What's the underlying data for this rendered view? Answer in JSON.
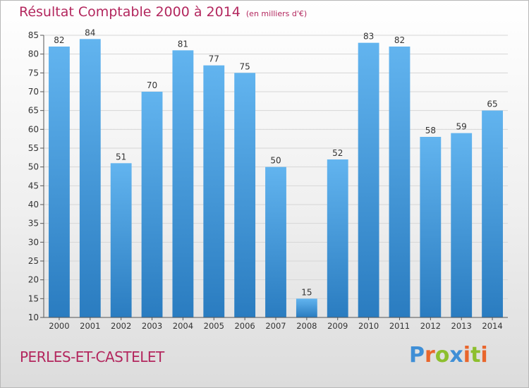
{
  "header": {
    "title": "Résultat Comptable 2000 à 2014",
    "subtitle": "(en milliers d'€)"
  },
  "footer": {
    "town": "PERLES-ET-CASTELET",
    "logo_text": "Proxiti"
  },
  "colors": {
    "bar_light": "#62b4ef",
    "bar_dark": "#2a7cc0",
    "title": "#b3275e",
    "grid": "#d6d6d6",
    "logo": [
      "#3f8fd6",
      "#e9662c",
      "#8dbf2e",
      "#3f8fd6",
      "#e9662c",
      "#8dbf2e",
      "#e9662c"
    ]
  },
  "chart_data": {
    "type": "bar",
    "title": "Résultat Comptable 2000 à 2014",
    "subtitle": "(en milliers d'€)",
    "categories": [
      "2000",
      "2001",
      "2002",
      "2003",
      "2004",
      "2005",
      "2006",
      "2007",
      "2008",
      "2009",
      "2010",
      "2011",
      "2012",
      "2013",
      "2014"
    ],
    "values": [
      82,
      84,
      51,
      70,
      81,
      77,
      75,
      50,
      15,
      52,
      83,
      82,
      58,
      59,
      65
    ],
    "ylim": [
      10,
      85
    ],
    "yticks": [
      10,
      15,
      20,
      25,
      30,
      35,
      40,
      45,
      50,
      55,
      60,
      65,
      70,
      75,
      80,
      85
    ],
    "grid": true,
    "data_labels": true
  }
}
